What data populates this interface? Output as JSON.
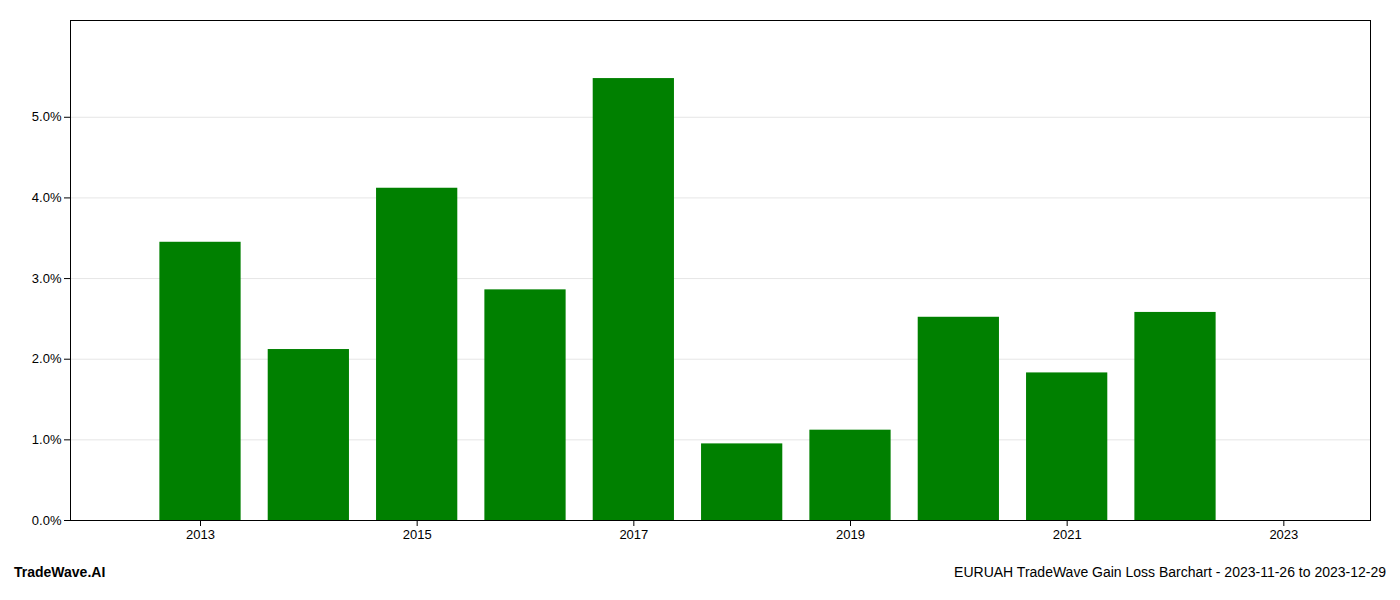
{
  "chart_data": {
    "type": "bar",
    "x": [
      2013,
      2014,
      2015,
      2016,
      2017,
      2018,
      2019,
      2020,
      2021,
      2022
    ],
    "values": [
      0.0345,
      0.0212,
      0.0412,
      0.0286,
      0.0548,
      0.0095,
      0.0112,
      0.0252,
      0.0183,
      0.0258
    ],
    "color": "#008000",
    "xlim": [
      2011.8,
      2023.8
    ],
    "xticks": [
      2013,
      2015,
      2017,
      2019,
      2021,
      2023
    ],
    "ylim": [
      0,
      0.062
    ],
    "yticks": [
      {
        "value": 0.0,
        "label": "0.0%"
      },
      {
        "value": 0.01,
        "label": "1.0%"
      },
      {
        "value": 0.02,
        "label": "2.0%"
      },
      {
        "value": 0.03,
        "label": "3.0%"
      },
      {
        "value": 0.04,
        "label": "4.0%"
      },
      {
        "value": 0.05,
        "label": "5.0%"
      }
    ],
    "grid": true,
    "annotations": [
      "TradeWave.AI",
      "EURUAH TradeWave Gain Loss Barchart - 2023-11-26 to 2023-12-29"
    ]
  }
}
